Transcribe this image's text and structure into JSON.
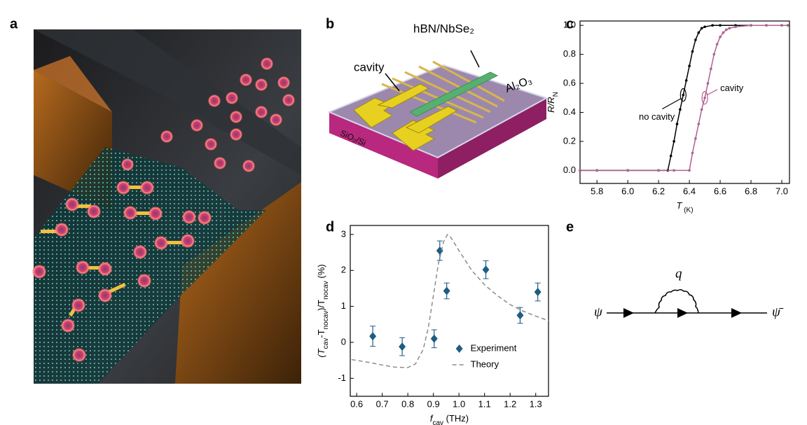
{
  "panel_labels": [
    "a",
    "b",
    "c",
    "d",
    "e"
  ],
  "schematic": {
    "labels": [
      "hBN/NbSe₂",
      "cavity",
      "Al₂O₃",
      "SiO₂/Si"
    ]
  },
  "chart_data": [
    {
      "type": "line",
      "xlabel_parts": [
        "T",
        " (K)"
      ],
      "ylabel_parts": [
        "R/R",
        "N"
      ],
      "xlim": [
        5.69,
        7.05
      ],
      "xticks": [
        5.8,
        {
          "value": 6.0,
          "label": "6.0"
        },
        6.2,
        6.4,
        6.6,
        6.8,
        {
          "value": 7.0,
          "label": "7.0"
        }
      ],
      "ylim": [
        -0.09,
        1.03
      ],
      "yticks": [
        {
          "value": 0,
          "label": "0.0"
        },
        0.2,
        0.4,
        0.6,
        0.8,
        {
          "value": 1,
          "label": "1.0"
        }
      ],
      "legend": "inline",
      "series": [
        {
          "name": "no cavity",
          "color": "#000000",
          "marker": "circle",
          "line_style": "solid",
          "x": [
            5.69,
            5.8,
            6.0,
            6.2,
            6.26,
            6.28,
            6.3,
            6.32,
            6.34,
            6.36,
            6.38,
            6.4,
            6.42,
            6.44,
            6.46,
            6.48,
            6.5,
            6.55,
            6.6,
            6.7,
            6.8,
            6.9,
            7.0,
            7.04
          ],
          "values": [
            0,
            0,
            0,
            0,
            0,
            0.1,
            0.2,
            0.32,
            0.42,
            0.52,
            0.62,
            0.72,
            0.82,
            0.9,
            0.95,
            0.98,
            0.99,
            1,
            1,
            1,
            1,
            1,
            1,
            1
          ]
        },
        {
          "name": "cavity",
          "color": "#b0608f",
          "marker": "circle",
          "line_style": "solid",
          "x": [
            5.69,
            5.8,
            6.0,
            6.2,
            6.3,
            6.4,
            6.42,
            6.44,
            6.46,
            6.48,
            6.5,
            6.52,
            6.54,
            6.56,
            6.58,
            6.6,
            6.62,
            6.64,
            6.66,
            6.7,
            6.8,
            6.9,
            7.0,
            7.04
          ],
          "values": [
            0,
            0,
            0,
            0,
            0,
            0,
            0.12,
            0.22,
            0.32,
            0.42,
            0.5,
            0.6,
            0.7,
            0.8,
            0.87,
            0.92,
            0.95,
            0.97,
            0.98,
            0.99,
            1,
            1,
            1,
            1
          ]
        }
      ]
    },
    {
      "type": "scatter",
      "xlabel_parts": [
        "f",
        "cav",
        " (THz)"
      ],
      "ylabel_parts": [
        "(T",
        "cav",
        "-T",
        "nocav",
        ")/T",
        "nocav",
        " (%)"
      ],
      "xlim": [
        0.575,
        1.35
      ],
      "xticks": [
        0.6,
        0.7,
        0.8,
        0.9,
        {
          "value": 1.0,
          "label": "1.0"
        },
        1.1,
        1.2,
        1.3
      ],
      "ylim": [
        -1.5,
        3.25
      ],
      "yticks": [
        -1,
        0,
        1,
        2,
        3
      ],
      "legend": "lower right",
      "series": [
        {
          "name": "Experiment",
          "color": "#1f5d82",
          "marker": "diamond",
          "line_style": "none",
          "x": [
            0.663,
            0.778,
            0.903,
            0.925,
            0.952,
            1.105,
            1.239,
            1.308
          ],
          "values": [
            0.17,
            -0.12,
            0.1,
            2.55,
            1.43,
            2.02,
            0.75,
            1.4
          ],
          "errors": [
            0.28,
            0.25,
            0.25,
            0.27,
            0.22,
            0.25,
            0.22,
            0.25
          ]
        },
        {
          "name": "Theory",
          "color": "#8c8c8c",
          "marker": "none",
          "line_style": "dashed",
          "x": [
            0.58,
            0.6,
            0.65,
            0.7,
            0.75,
            0.8,
            0.83,
            0.86,
            0.88,
            0.9,
            0.92,
            0.94,
            0.955,
            0.97,
            1.0,
            1.05,
            1.1,
            1.15,
            1.2,
            1.25,
            1.3,
            1.35
          ],
          "values": [
            -0.48,
            -0.5,
            -0.56,
            -0.63,
            -0.69,
            -0.7,
            -0.6,
            -0.2,
            0.4,
            1.3,
            2.2,
            2.8,
            3.0,
            2.9,
            2.55,
            2.0,
            1.6,
            1.3,
            1.05,
            0.87,
            0.73,
            0.6
          ]
        }
      ]
    }
  ],
  "diagram": {
    "labels": [
      "ψ",
      "q",
      "ψ̄"
    ]
  }
}
